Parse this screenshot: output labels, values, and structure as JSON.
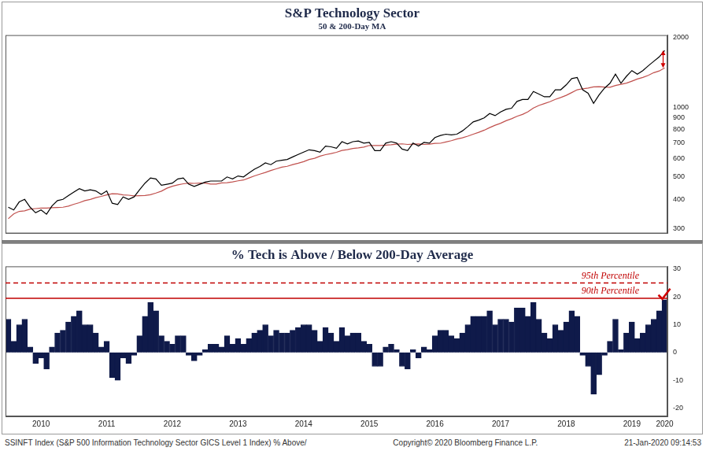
{
  "chart_data": [
    {
      "type": "line",
      "title": "S&P Technology Sector",
      "subtitle": "50 & 200-Day MA",
      "log": "y",
      "grid": false,
      "tick_labels": "y",
      "categories": [
        null,
        null,
        null,
        null,
        null,
        null,
        "2010",
        null,
        null,
        null,
        null,
        null,
        null,
        null,
        null,
        null,
        null,
        null,
        "2011",
        null,
        null,
        null,
        null,
        null,
        null,
        null,
        null,
        null,
        null,
        null,
        "2012",
        null,
        null,
        null,
        null,
        null,
        null,
        null,
        null,
        null,
        null,
        null,
        "2013",
        null,
        null,
        null,
        null,
        null,
        null,
        null,
        null,
        null,
        null,
        null,
        "2014",
        null,
        null,
        null,
        null,
        null,
        null,
        null,
        null,
        null,
        null,
        null,
        "2015",
        null,
        null,
        null,
        null,
        null,
        null,
        null,
        null,
        null,
        null,
        null,
        "2016",
        null,
        null,
        null,
        null,
        null,
        null,
        null,
        null,
        null,
        null,
        null,
        "2017",
        null,
        null,
        null,
        null,
        null,
        null,
        null,
        null,
        null,
        null,
        null,
        "2018",
        null,
        null,
        null,
        null,
        null,
        null,
        null,
        null,
        null,
        null,
        null,
        "2019",
        null,
        null,
        null,
        null,
        null,
        "2020"
      ],
      "ylim": [
        285,
        2050
      ],
      "yticks": [
        300,
        400,
        500,
        600,
        700,
        800,
        900,
        1000,
        2000
      ],
      "series": [
        {
          "color": "#000000",
          "values": [
            370,
            360,
            390,
            400,
            370,
            350,
            360,
            345,
            375,
            395,
            400,
            415,
            430,
            445,
            435,
            440,
            435,
            420,
            435,
            385,
            380,
            410,
            400,
            410,
            440,
            470,
            495,
            490,
            460,
            465,
            470,
            490,
            495,
            465,
            455,
            465,
            475,
            480,
            480,
            480,
            500,
            490,
            505,
            500,
            520,
            540,
            555,
            575,
            565,
            585,
            590,
            595,
            610,
            625,
            640,
            655,
            650,
            640,
            680,
            675,
            665,
            710,
            695,
            710,
            715,
            700,
            705,
            650,
            650,
            700,
            710,
            700,
            660,
            650,
            700,
            680,
            705,
            700,
            740,
            755,
            765,
            760,
            765,
            790,
            825,
            865,
            880,
            900,
            940,
            920,
            955,
            980,
            990,
            1060,
            1080,
            1080,
            1170,
            1140,
            1110,
            1110,
            1190,
            1190,
            1250,
            1330,
            1345,
            1190,
            1150,
            1040,
            1130,
            1210,
            1270,
            1390,
            1270,
            1360,
            1440,
            1390,
            1440,
            1510,
            1580,
            1650,
            1760
          ]
        },
        {
          "color": "#c0504d",
          "values": [
            330,
            346,
            355,
            357,
            363,
            365,
            367,
            367,
            368,
            369,
            370,
            374,
            381,
            387,
            395,
            400,
            407,
            412,
            418,
            423,
            422,
            418,
            417,
            414,
            415,
            416,
            419,
            426,
            434,
            447,
            456,
            462,
            467,
            470,
            469,
            470,
            470,
            466,
            466,
            471,
            472,
            476,
            481,
            485,
            495,
            505,
            514,
            523,
            533,
            542,
            551,
            556,
            565,
            573,
            582,
            595,
            602,
            615,
            624,
            631,
            639,
            651,
            656,
            664,
            668,
            673,
            684,
            684,
            684,
            686,
            689,
            693,
            695,
            691,
            693,
            694,
            691,
            693,
            698,
            699,
            708,
            717,
            729,
            738,
            750,
            765,
            779,
            796,
            817,
            836,
            853,
            875,
            892,
            914,
            931,
            956,
            992,
            1018,
            1037,
            1057,
            1082,
            1102,
            1126,
            1157,
            1190,
            1202,
            1211,
            1224,
            1228,
            1222,
            1221,
            1241,
            1257,
            1271,
            1297,
            1324,
            1346,
            1373,
            1411,
            1435,
            1479
          ]
        }
      ]
    },
    {
      "type": "bar",
      "title": "% Tech is Above / Below 200-Day Average",
      "grid": false,
      "categories": [
        null,
        null,
        null,
        null,
        null,
        null,
        "2010",
        null,
        null,
        null,
        null,
        null,
        null,
        null,
        null,
        null,
        null,
        null,
        "2011",
        null,
        null,
        null,
        null,
        null,
        null,
        null,
        null,
        null,
        null,
        null,
        "2012",
        null,
        null,
        null,
        null,
        null,
        null,
        null,
        null,
        null,
        null,
        null,
        "2013",
        null,
        null,
        null,
        null,
        null,
        null,
        null,
        null,
        null,
        null,
        null,
        "2014",
        null,
        null,
        null,
        null,
        null,
        null,
        null,
        null,
        null,
        null,
        null,
        "2015",
        null,
        null,
        null,
        null,
        null,
        null,
        null,
        null,
        null,
        null,
        null,
        "2016",
        null,
        null,
        null,
        null,
        null,
        null,
        null,
        null,
        null,
        null,
        null,
        "2017",
        null,
        null,
        null,
        null,
        null,
        null,
        null,
        null,
        null,
        null,
        null,
        "2018",
        null,
        null,
        null,
        null,
        null,
        null,
        null,
        null,
        null,
        null,
        null,
        "2019",
        null,
        null,
        null,
        null,
        null,
        "2020"
      ],
      "values": [
        12,
        4,
        10,
        12,
        2,
        -4,
        -2,
        -6,
        2,
        7,
        8,
        11,
        13,
        15,
        10,
        10,
        7,
        2,
        4,
        -9,
        -10,
        -2,
        -4,
        -1,
        6,
        13,
        18,
        15,
        6,
        4,
        3,
        6,
        6,
        -1,
        -3,
        -1,
        1,
        3,
        3,
        2,
        6,
        3,
        5,
        3,
        5,
        7,
        8,
        10,
        6,
        8,
        7,
        7,
        8,
        9,
        10,
        10,
        8,
        4,
        9,
        7,
        4,
        9,
        6,
        7,
        7,
        4,
        3,
        -5,
        -5,
        2,
        3,
        1,
        -5,
        -6,
        1,
        -2,
        2,
        1,
        6,
        8,
        8,
        6,
        5,
        7,
        10,
        13,
        13,
        13,
        15,
        10,
        12,
        12,
        11,
        16,
        16,
        13,
        18,
        12,
        7,
        5,
        10,
        8,
        11,
        15,
        13,
        -1,
        -5,
        -15,
        -8,
        -1,
        4,
        12,
        1,
        7,
        11,
        5,
        7,
        10,
        12,
        15,
        19
      ],
      "color": "#0f1a4a",
      "ylim": [
        -23,
        31
      ],
      "yticks": [
        -20,
        -10,
        0,
        10,
        20,
        30
      ],
      "reference_lines": [
        {
          "value": 25,
          "label": "95th Percentile",
          "color": "#c00000",
          "line_style": "dashed"
        },
        {
          "value": 19.5,
          "label": "90th Percentile",
          "color": "#c00000",
          "line_style": "solid"
        }
      ]
    }
  ],
  "footer": {
    "source": "SSINFT Index (S&P 500 Information Technology Sector GICS Level 1 Index) % Above/",
    "copyright": "Copyright© 2020 Bloomberg Finance L.P.",
    "timestamp": "21-Jan-2020 09:14:53"
  }
}
